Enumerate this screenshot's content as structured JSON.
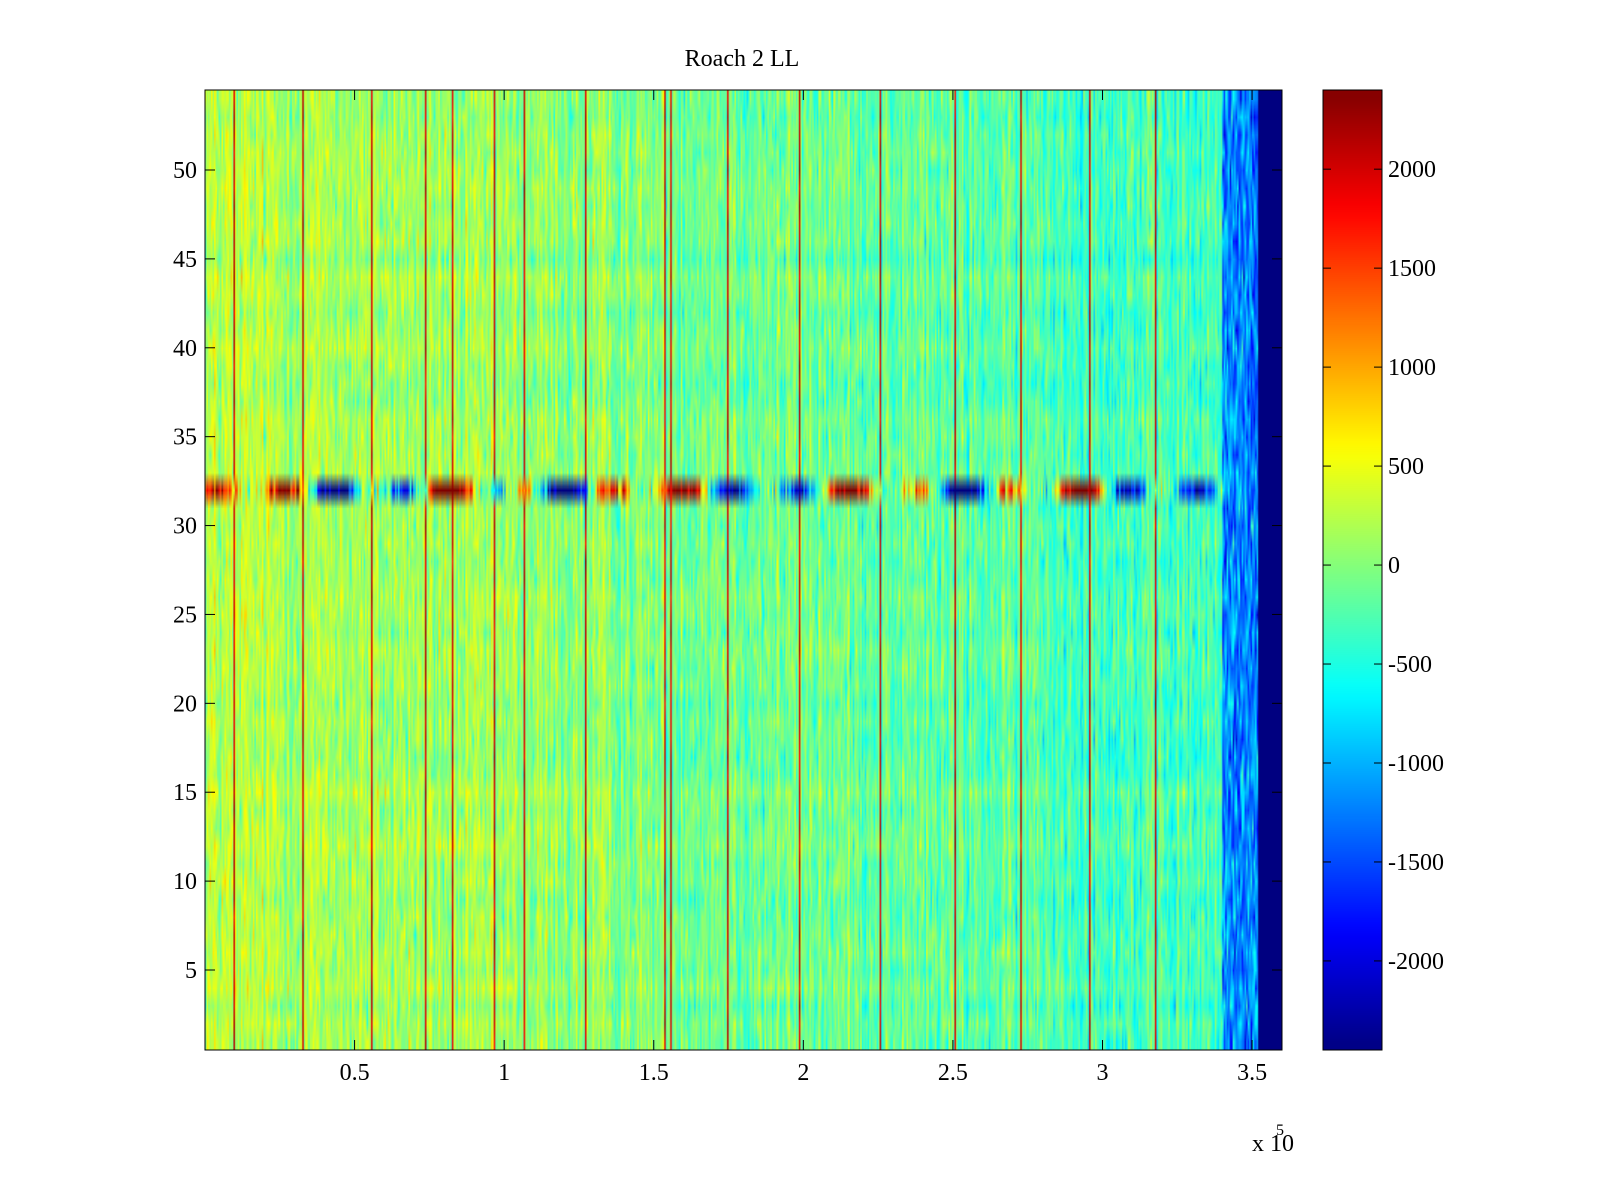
{
  "chart_data": {
    "type": "heatmap",
    "title": "Roach 2 LL",
    "xlabel": "",
    "ylabel": "",
    "x_multiplier_label": {
      "base": "x 10",
      "exponent": "5"
    },
    "xlim": [
      0,
      3.6
    ],
    "ylim": [
      0.5,
      54.5
    ],
    "x_ticks": [
      {
        "value": 0.5,
        "label": "0.5"
      },
      {
        "value": 1,
        "label": "1"
      },
      {
        "value": 1.5,
        "label": "1.5"
      },
      {
        "value": 2,
        "label": "2"
      },
      {
        "value": 2.5,
        "label": "2.5"
      },
      {
        "value": 3,
        "label": "3"
      },
      {
        "value": 3.5,
        "label": "3.5"
      }
    ],
    "y_ticks": [
      {
        "value": 5,
        "label": "5"
      },
      {
        "value": 10,
        "label": "10"
      },
      {
        "value": 15,
        "label": "15"
      },
      {
        "value": 20,
        "label": "20"
      },
      {
        "value": 25,
        "label": "25"
      },
      {
        "value": 30,
        "label": "30"
      },
      {
        "value": 35,
        "label": "35"
      },
      {
        "value": 40,
        "label": "40"
      },
      {
        "value": 45,
        "label": "45"
      },
      {
        "value": 50,
        "label": "50"
      }
    ],
    "colorbar": {
      "colormap": "jet",
      "clim": [
        -2450,
        2400
      ],
      "ticks": [
        {
          "value": 2000,
          "label": "2000"
        },
        {
          "value": 1500,
          "label": "1500"
        },
        {
          "value": 1000,
          "label": "1000"
        },
        {
          "value": 500,
          "label": "500"
        },
        {
          "value": 0,
          "label": "0"
        },
        {
          "value": -500,
          "label": "-500"
        },
        {
          "value": -1000,
          "label": "-1000"
        },
        {
          "value": -1500,
          "label": "-1500"
        },
        {
          "value": -2000,
          "label": "-2000"
        }
      ]
    },
    "rows": 54,
    "data_x_end": 3.52,
    "anomalous_row": 32,
    "background_level": {
      "left": 250,
      "right": -350
    },
    "hot_columns_x": [
      0.095,
      0.325,
      0.555,
      0.735,
      0.825,
      0.965,
      1.065,
      1.275,
      1.535,
      1.555,
      1.745,
      1.985,
      2.255,
      2.505,
      2.725,
      2.955,
      3.175
    ],
    "hot_column_value": 2000,
    "edge_band": {
      "from": 3.4,
      "to": 3.52,
      "value": -1200
    },
    "empty_region": {
      "from": 3.52,
      "to": 3.6,
      "value": -2450
    }
  }
}
